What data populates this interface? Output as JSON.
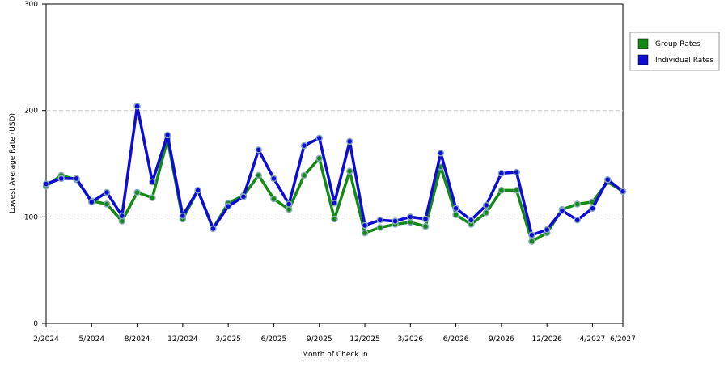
{
  "chart_data": {
    "type": "line",
    "xlabel": "Month of Check In",
    "ylabel": "Lowest Average Rate (USD)",
    "categories": [
      "2/2024",
      null,
      null,
      "5/2024",
      null,
      null,
      "8/2024",
      null,
      null,
      "12/2024",
      null,
      null,
      "3/2025",
      null,
      null,
      "6/2025",
      null,
      null,
      "9/2025",
      null,
      null,
      "12/2025",
      null,
      null,
      "3/2026",
      null,
      null,
      "6/2026",
      null,
      null,
      "9/2026",
      null,
      null,
      "12/2026",
      null,
      null,
      "4/2027",
      null,
      "6/2027"
    ],
    "series": [
      {
        "name": "Group Rates",
        "color": "#138a13",
        "values": [
          129,
          139,
          135,
          115,
          112,
          96,
          123,
          118,
          173,
          98,
          125,
          89,
          113,
          120,
          139,
          117,
          107,
          139,
          155,
          98,
          143,
          85,
          90,
          93,
          95,
          91,
          147,
          102,
          93,
          104,
          125,
          125,
          77,
          85,
          107,
          112,
          114,
          133,
          124
        ]
      },
      {
        "name": "Individual Rates",
        "color": "#0c0cd4",
        "values": [
          131,
          136,
          136,
          114,
          123,
          101,
          204,
          133,
          177,
          101,
          125,
          89,
          110,
          119,
          163,
          136,
          112,
          167,
          174,
          113,
          171,
          92,
          97,
          96,
          100,
          98,
          160,
          108,
          97,
          111,
          141,
          142,
          83,
          88,
          106,
          97,
          108,
          135,
          124
        ]
      }
    ],
    "ylim": [
      0,
      300
    ],
    "yticks": [
      0,
      100,
      200,
      300
    ],
    "grid": true,
    "legend": "right"
  }
}
